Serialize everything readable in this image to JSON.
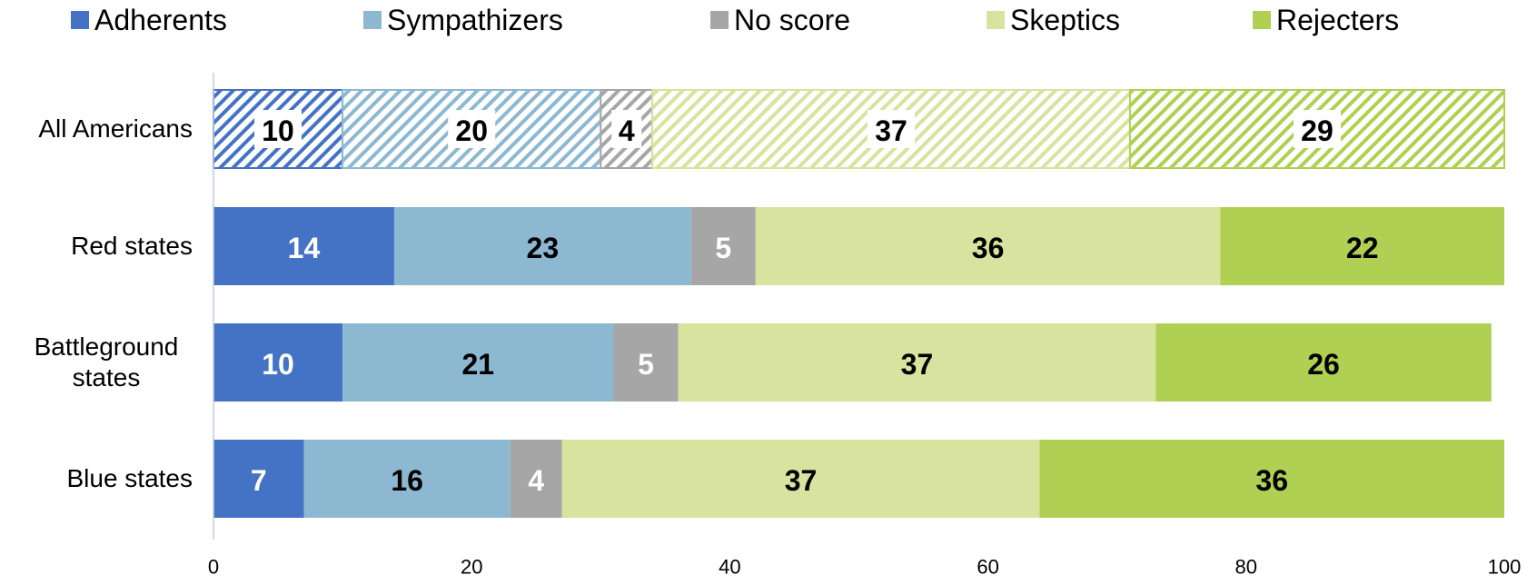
{
  "chart_data": {
    "type": "stacked-bar-horizontal",
    "categories": [
      "All Americans",
      "Red states",
      "Battleground states",
      "Blue states"
    ],
    "series": [
      {
        "name": "Adherents",
        "color": "#4472c4",
        "label_color": "#ffffff",
        "values": [
          10,
          14,
          10,
          7
        ]
      },
      {
        "name": "Sympathizers",
        "color": "#8db8d2",
        "label_color": "#000000",
        "values": [
          20,
          23,
          21,
          16
        ]
      },
      {
        "name": "No score",
        "color": "#a6a6a6",
        "label_color": "#ffffff",
        "values": [
          4,
          5,
          5,
          4
        ]
      },
      {
        "name": "Skeptics",
        "color": "#d7e39e",
        "label_color": "#000000",
        "values": [
          37,
          36,
          37,
          37
        ]
      },
      {
        "name": "Rejecters",
        "color": "#afd053",
        "label_color": "#000000",
        "values": [
          29,
          22,
          26,
          36
        ]
      }
    ],
    "hatched_categories": [
      0
    ],
    "xlim": [
      0,
      100
    ],
    "xticks": [
      0,
      20,
      40,
      60,
      80,
      100
    ],
    "legend": "top"
  }
}
